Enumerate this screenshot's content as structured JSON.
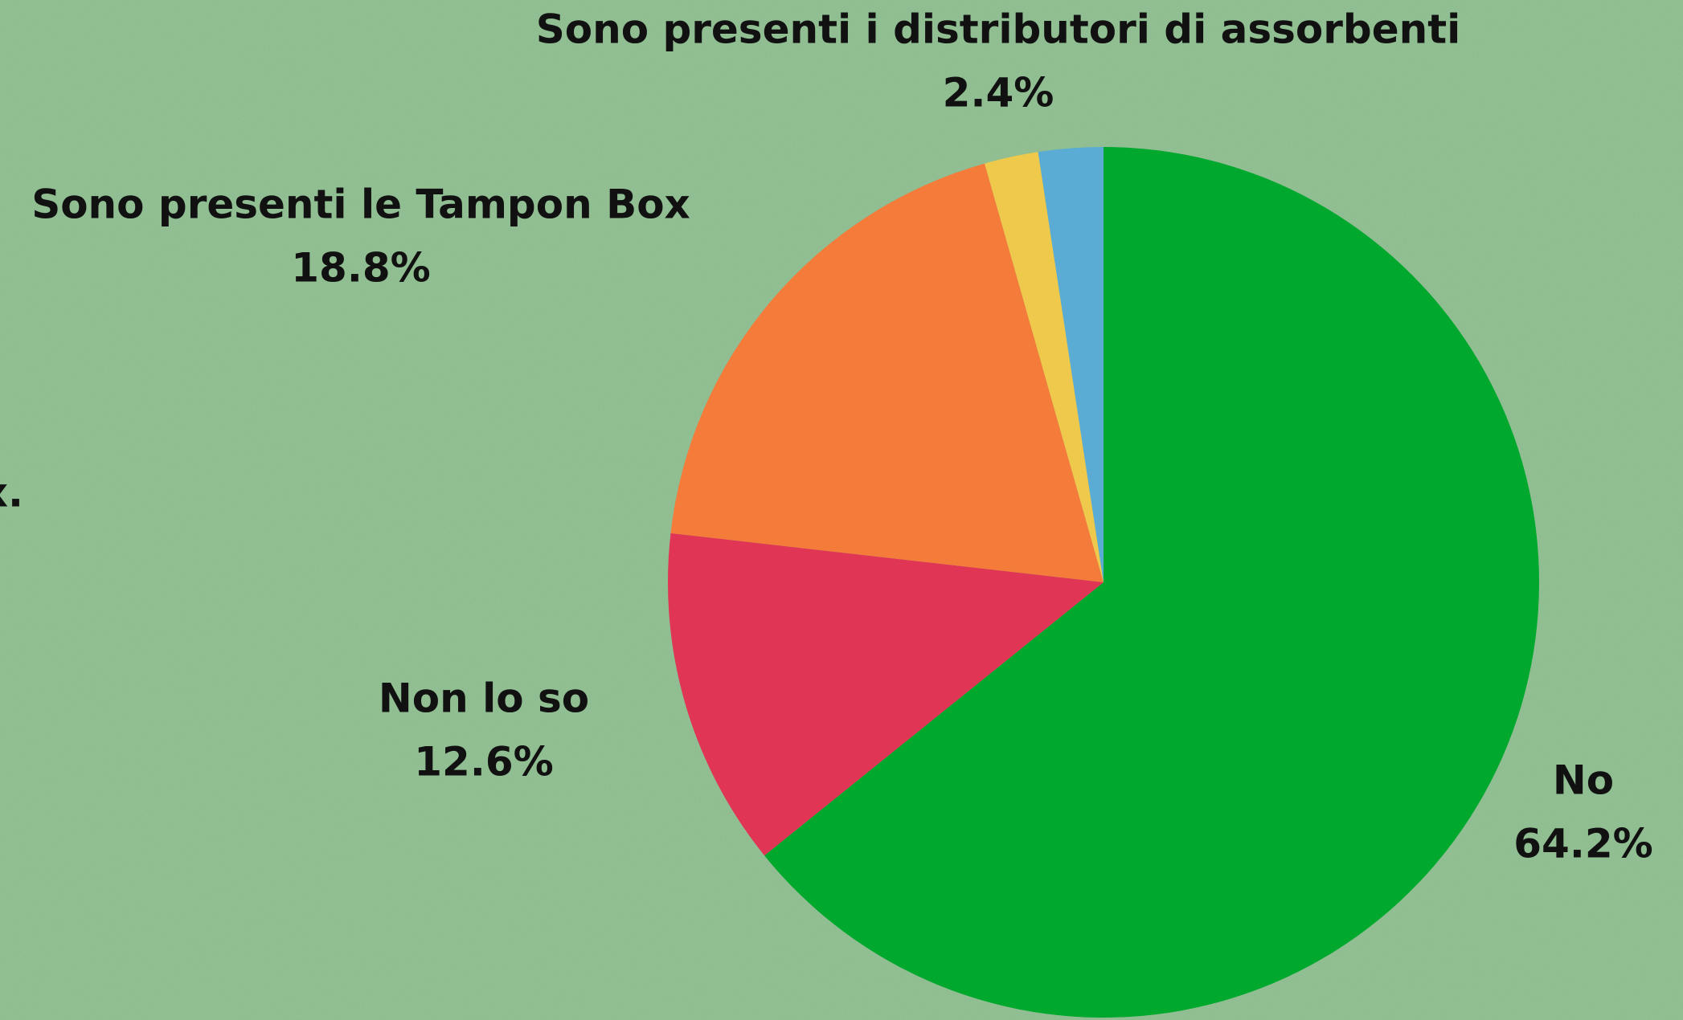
{
  "chart_data": {
    "type": "pie",
    "categories": [
      "No",
      "Non lo so",
      "Sono presenti le Tampon Box",
      null,
      "Sono presenti i distributori di assorbenti"
    ],
    "values": [
      64.2,
      12.6,
      18.8,
      2.0,
      2.4
    ],
    "value_labels": [
      "64.2%",
      "12.6%",
      "18.8%",
      null,
      "2.4%"
    ],
    "colors": [
      "#00a82d",
      "#e03555",
      "#f47b3a",
      "#efc94c",
      "#5aacd4"
    ],
    "annotation": "x."
  }
}
